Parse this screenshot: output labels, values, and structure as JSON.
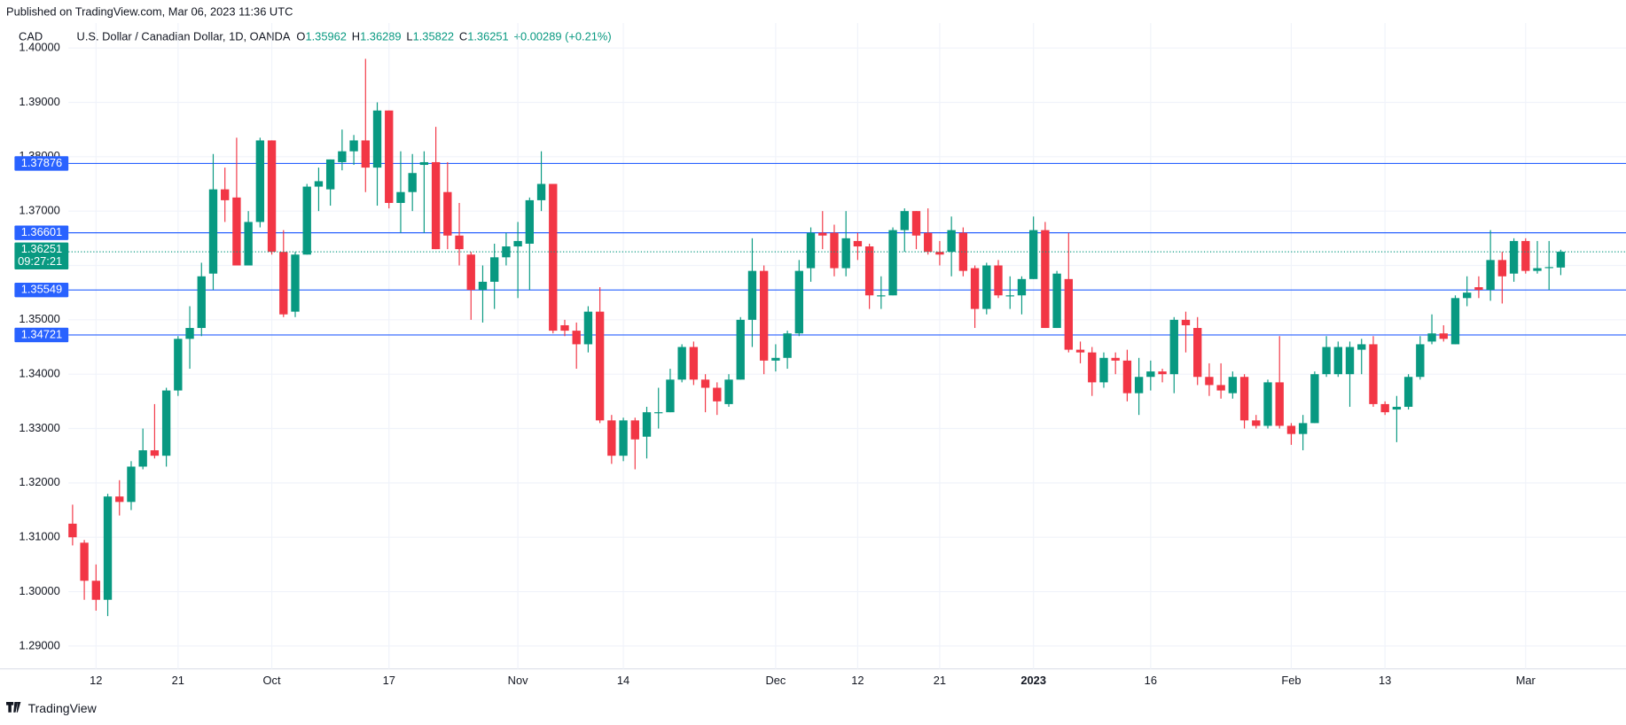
{
  "header": {
    "published": "Published on TradingView.com, Mar 06, 2023 11:36 UTC",
    "symbol": "CAD",
    "title": "U.S. Dollar / Canadian Dollar, 1D, OANDA",
    "legend": [
      {
        "key": "O",
        "value": "1.35962"
      },
      {
        "key": "H",
        "value": "1.36289"
      },
      {
        "key": "L",
        "value": "1.35822"
      },
      {
        "key": "C",
        "value": "1.36251"
      }
    ],
    "change": "+0.00289 (+0.21%)"
  },
  "footer": {
    "brand": "TradingView"
  },
  "chart_data": {
    "type": "candlestick",
    "categories": [
      null,
      null,
      "12",
      null,
      null,
      null,
      null,
      null,
      null,
      "21",
      null,
      null,
      null,
      null,
      null,
      null,
      null,
      "Oct",
      null,
      null,
      null,
      null,
      null,
      null,
      null,
      null,
      null,
      "17",
      null,
      null,
      null,
      null,
      null,
      null,
      null,
      null,
      null,
      null,
      "Nov",
      null,
      null,
      null,
      null,
      null,
      null,
      null,
      null,
      "14",
      null,
      null,
      null,
      null,
      null,
      null,
      null,
      null,
      null,
      null,
      null,
      null,
      "Dec",
      null,
      null,
      null,
      null,
      null,
      null,
      "12",
      null,
      null,
      null,
      null,
      null,
      null,
      "21",
      null,
      null,
      null,
      null,
      null,
      null,
      null,
      "2023",
      null,
      null,
      null,
      null,
      null,
      null,
      null,
      null,
      null,
      "16",
      null,
      null,
      null,
      null,
      null,
      null,
      null,
      null,
      null,
      null,
      null,
      "Feb",
      null,
      null,
      null,
      null,
      null,
      null,
      null,
      "13",
      null,
      null,
      null,
      null,
      null,
      null,
      null,
      null,
      null,
      null,
      null,
      "Mar",
      null,
      null,
      null
    ],
    "open": [
      1.3125,
      1.309,
      1.302,
      1.2985,
      1.3175,
      1.3165,
      1.323,
      1.326,
      1.325,
      1.337,
      1.3465,
      1.3485,
      1.3585,
      1.374,
      1.3725,
      1.36,
      1.368,
      1.383,
      1.3625,
      1.3515,
      1.362,
      1.3745,
      1.374,
      1.379,
      1.381,
      1.383,
      1.378,
      1.3885,
      1.3715,
      1.3735,
      1.3785,
      1.379,
      1.3735,
      1.3655,
      1.362,
      1.3555,
      1.357,
      1.3615,
      1.3635,
      1.364,
      1.372,
      1.375,
      1.349,
      1.348,
      1.3455,
      1.3515,
      1.3315,
      1.325,
      1.3315,
      1.3285,
      1.333,
      1.333,
      1.339,
      1.345,
      1.339,
      1.3375,
      1.3345,
      1.339,
      1.35,
      1.359,
      1.3425,
      1.343,
      1.3475,
      1.3595,
      1.366,
      1.366,
      1.3595,
      1.3645,
      1.3635,
      1.3545,
      1.3545,
      1.3665,
      1.37,
      1.366,
      1.3625,
      1.3625,
      1.366,
      1.3595,
      1.352,
      1.36,
      1.3545,
      1.3545,
      1.3575,
      1.3665,
      1.3485,
      1.3575,
      1.3445,
      1.344,
      1.3385,
      1.343,
      1.3425,
      1.3365,
      1.3395,
      1.3405,
      1.34,
      1.35,
      1.3485,
      1.3395,
      1.338,
      1.3365,
      1.3395,
      1.3315,
      1.3305,
      1.3385,
      1.3305,
      1.329,
      1.331,
      1.34,
      1.34,
      1.34,
      1.3445,
      1.3455,
      1.3345,
      1.3335,
      1.334,
      1.3395,
      1.346,
      1.3475,
      1.3455,
      1.354,
      1.356,
      1.3555,
      1.361,
      1.3585,
      1.3645,
      1.359,
      1.3596,
      1.35962
    ],
    "high": [
      1.316,
      1.3095,
      1.305,
      1.318,
      1.3205,
      1.324,
      1.33,
      1.3345,
      1.3375,
      1.347,
      1.3525,
      1.3605,
      1.3805,
      1.378,
      1.3835,
      1.37,
      1.3835,
      1.383,
      1.3665,
      1.3625,
      1.375,
      1.378,
      1.3795,
      1.385,
      1.384,
      1.398,
      1.39,
      1.3885,
      1.381,
      1.3805,
      1.381,
      1.3855,
      1.379,
      1.3715,
      1.3625,
      1.36,
      1.364,
      1.366,
      1.368,
      1.3725,
      1.381,
      1.375,
      1.35,
      1.3495,
      1.3525,
      1.356,
      1.3325,
      1.332,
      1.332,
      1.334,
      1.3375,
      1.341,
      1.3455,
      1.346,
      1.34,
      1.3385,
      1.34,
      1.3505,
      1.365,
      1.36,
      1.3455,
      1.348,
      1.361,
      1.367,
      1.37,
      1.3675,
      1.37,
      1.366,
      1.364,
      1.358,
      1.367,
      1.3705,
      1.37,
      1.3705,
      1.3645,
      1.369,
      1.367,
      1.36,
      1.3605,
      1.361,
      1.358,
      1.358,
      1.369,
      1.368,
      1.359,
      1.366,
      1.346,
      1.345,
      1.344,
      1.344,
      1.3445,
      1.343,
      1.3425,
      1.341,
      1.3505,
      1.3515,
      1.3505,
      1.342,
      1.342,
      1.3405,
      1.34,
      1.3325,
      1.339,
      1.347,
      1.331,
      1.3325,
      1.3405,
      1.347,
      1.346,
      1.346,
      1.3465,
      1.347,
      1.335,
      1.336,
      1.34,
      1.347,
      1.351,
      1.349,
      1.3545,
      1.358,
      1.358,
      1.3665,
      1.3625,
      1.365,
      1.365,
      1.3645,
      1.3645,
      1.36289
    ],
    "low": [
      1.3085,
      1.2985,
      1.2965,
      1.2955,
      1.314,
      1.315,
      1.3225,
      1.3245,
      1.323,
      1.336,
      1.341,
      1.347,
      1.3555,
      1.368,
      1.36,
      1.36,
      1.367,
      1.362,
      1.3505,
      1.3505,
      1.362,
      1.37,
      1.371,
      1.3775,
      1.3785,
      1.3735,
      1.371,
      1.3705,
      1.366,
      1.37,
      1.366,
      1.363,
      1.363,
      1.36,
      1.35,
      1.3495,
      1.352,
      1.36,
      1.354,
      1.3555,
      1.37,
      1.3475,
      1.347,
      1.341,
      1.344,
      1.331,
      1.3235,
      1.324,
      1.3225,
      1.3245,
      1.33,
      1.333,
      1.3385,
      1.338,
      1.333,
      1.3325,
      1.334,
      1.339,
      1.345,
      1.34,
      1.3405,
      1.341,
      1.347,
      1.357,
      1.363,
      1.358,
      1.358,
      1.361,
      1.352,
      1.352,
      1.3545,
      1.3625,
      1.363,
      1.362,
      1.36,
      1.358,
      1.358,
      1.3485,
      1.351,
      1.354,
      1.352,
      1.351,
      1.3575,
      1.3485,
      1.3485,
      1.344,
      1.342,
      1.336,
      1.3375,
      1.34,
      1.335,
      1.3325,
      1.337,
      1.3385,
      1.3365,
      1.344,
      1.338,
      1.336,
      1.3355,
      1.3355,
      1.33,
      1.33,
      1.33,
      1.33,
      1.327,
      1.326,
      1.331,
      1.3395,
      1.3395,
      1.334,
      1.34,
      1.334,
      1.3325,
      1.3275,
      1.3335,
      1.339,
      1.3455,
      1.346,
      1.3455,
      1.3525,
      1.354,
      1.3535,
      1.353,
      1.357,
      1.3585,
      1.3585,
      1.3555,
      1.35822
    ],
    "close": [
      1.31,
      1.302,
      1.2985,
      1.3175,
      1.3165,
      1.323,
      1.326,
      1.325,
      1.337,
      1.3465,
      1.3485,
      1.358,
      1.374,
      1.372,
      1.36,
      1.368,
      1.383,
      1.3625,
      1.351,
      1.362,
      1.3745,
      1.3755,
      1.3795,
      1.381,
      1.383,
      1.378,
      1.3885,
      1.3715,
      1.3735,
      1.377,
      1.379,
      1.363,
      1.3655,
      1.363,
      1.3555,
      1.357,
      1.3615,
      1.3635,
      1.3645,
      1.372,
      1.375,
      1.348,
      1.348,
      1.3455,
      1.3515,
      1.3315,
      1.325,
      1.3315,
      1.328,
      1.333,
      1.333,
      1.339,
      1.345,
      1.339,
      1.3375,
      1.335,
      1.339,
      1.35,
      1.359,
      1.3425,
      1.343,
      1.3475,
      1.359,
      1.366,
      1.3655,
      1.3595,
      1.365,
      1.3635,
      1.3545,
      1.3545,
      1.3665,
      1.37,
      1.3655,
      1.3625,
      1.362,
      1.3665,
      1.359,
      1.352,
      1.36,
      1.3545,
      1.3545,
      1.3575,
      1.3665,
      1.3485,
      1.3585,
      1.3445,
      1.344,
      1.3385,
      1.343,
      1.3425,
      1.3365,
      1.3395,
      1.3405,
      1.34,
      1.35,
      1.349,
      1.3395,
      1.338,
      1.337,
      1.3395,
      1.3315,
      1.3305,
      1.3385,
      1.3305,
      1.329,
      1.331,
      1.34,
      1.345,
      1.345,
      1.345,
      1.3455,
      1.3345,
      1.333,
      1.334,
      1.3395,
      1.3455,
      1.3475,
      1.3465,
      1.354,
      1.355,
      1.3555,
      1.361,
      1.358,
      1.3645,
      1.359,
      1.3595,
      1.3597,
      1.36251
    ],
    "up_color": "#089981",
    "down_color": "#f23645",
    "ylim": [
      1.2858,
      1.4046
    ],
    "yticks": [
      {
        "value": 1.29,
        "label": "1.29000"
      },
      {
        "value": 1.3,
        "label": "1.30000"
      },
      {
        "value": 1.31,
        "label": "1.31000"
      },
      {
        "value": 1.32,
        "label": "1.32000"
      },
      {
        "value": 1.33,
        "label": "1.33000"
      },
      {
        "value": 1.34,
        "label": "1.34000"
      },
      {
        "value": 1.35,
        "label": "1.35000"
      },
      {
        "value": 1.36,
        "label": "1.36000"
      },
      {
        "value": 1.37,
        "label": "1.37000"
      },
      {
        "value": 1.38,
        "label": "1.38000"
      },
      {
        "value": 1.39,
        "label": "1.39000"
      },
      {
        "value": 1.4,
        "label": "1.40000"
      }
    ],
    "grid": true,
    "hlines": [
      1.37876,
      1.36601,
      1.35549,
      1.34721
    ],
    "hline_color": "#2962ff",
    "countdown": "09:27:21"
  }
}
